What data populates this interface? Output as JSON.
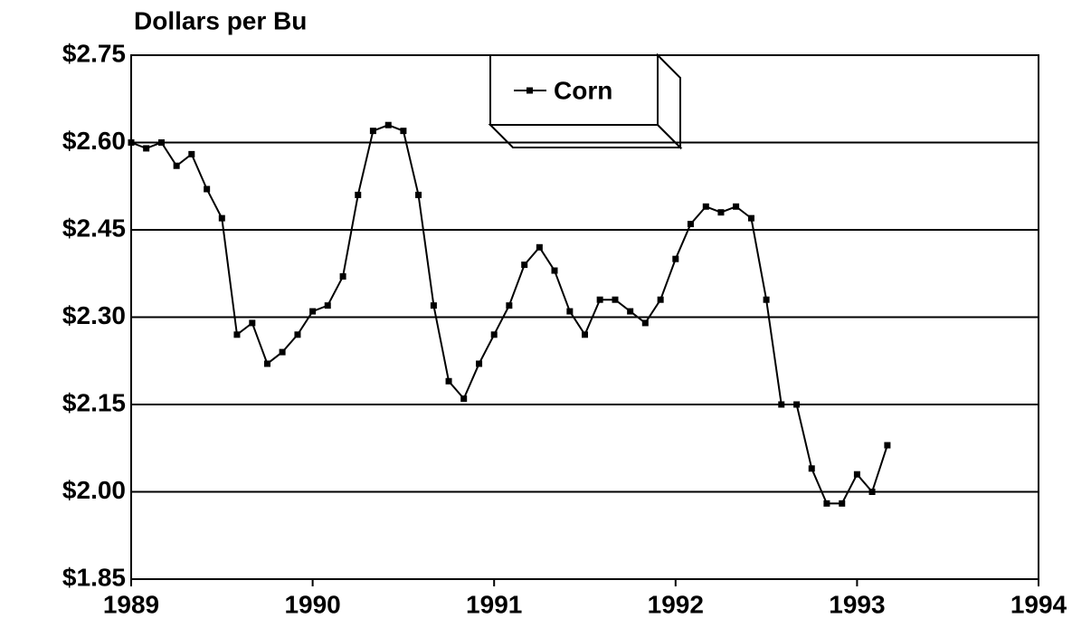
{
  "chart_data": {
    "type": "line",
    "title": "Dollars per Bu",
    "x": [
      1989,
      1989.083,
      1989.167,
      1989.25,
      1989.333,
      1989.417,
      1989.5,
      1989.583,
      1989.667,
      1989.75,
      1989.833,
      1989.917,
      1990,
      1990.083,
      1990.167,
      1990.25,
      1990.333,
      1990.417,
      1990.5,
      1990.583,
      1990.667,
      1990.75,
      1990.833,
      1990.917,
      1991,
      1991.083,
      1991.167,
      1991.25,
      1991.333,
      1991.417,
      1991.5,
      1991.583,
      1991.667,
      1991.75,
      1991.833,
      1991.917,
      1992,
      1992.083,
      1992.167,
      1992.25,
      1992.333,
      1992.417,
      1992.5,
      1992.583,
      1992.667,
      1992.75,
      1992.833,
      1992.917,
      1993,
      1993.083,
      1993.167
    ],
    "series": [
      {
        "name": "Corn",
        "color": "#000000",
        "values": [
          2.6,
          2.59,
          2.6,
          2.56,
          2.58,
          2.52,
          2.47,
          2.27,
          2.29,
          2.22,
          2.24,
          2.27,
          2.31,
          2.32,
          2.37,
          2.51,
          2.62,
          2.63,
          2.62,
          2.51,
          2.32,
          2.19,
          2.16,
          2.22,
          2.27,
          2.32,
          2.39,
          2.42,
          2.38,
          2.31,
          2.27,
          2.33,
          2.33,
          2.31,
          2.29,
          2.33,
          2.4,
          2.46,
          2.49,
          2.48,
          2.49,
          2.47,
          2.33,
          2.15,
          2.15,
          2.04,
          1.98,
          1.98,
          2.03,
          2.0,
          2.08
        ]
      }
    ],
    "xlim": [
      1989,
      1994
    ],
    "xticks": [
      1989,
      1990,
      1991,
      1992,
      1993,
      1994
    ],
    "ylim": [
      1.85,
      2.75
    ],
    "yticks": [
      {
        "value": 1.85,
        "label": "$1.85"
      },
      {
        "value": 2.0,
        "label": "$2.00"
      },
      {
        "value": 2.15,
        "label": "$2.15"
      },
      {
        "value": 2.3,
        "label": "$2.30"
      },
      {
        "value": 2.45,
        "label": "$2.45"
      },
      {
        "value": 2.6,
        "label": "$2.60"
      },
      {
        "value": 2.75,
        "label": "$2.75"
      }
    ],
    "grid": true
  }
}
